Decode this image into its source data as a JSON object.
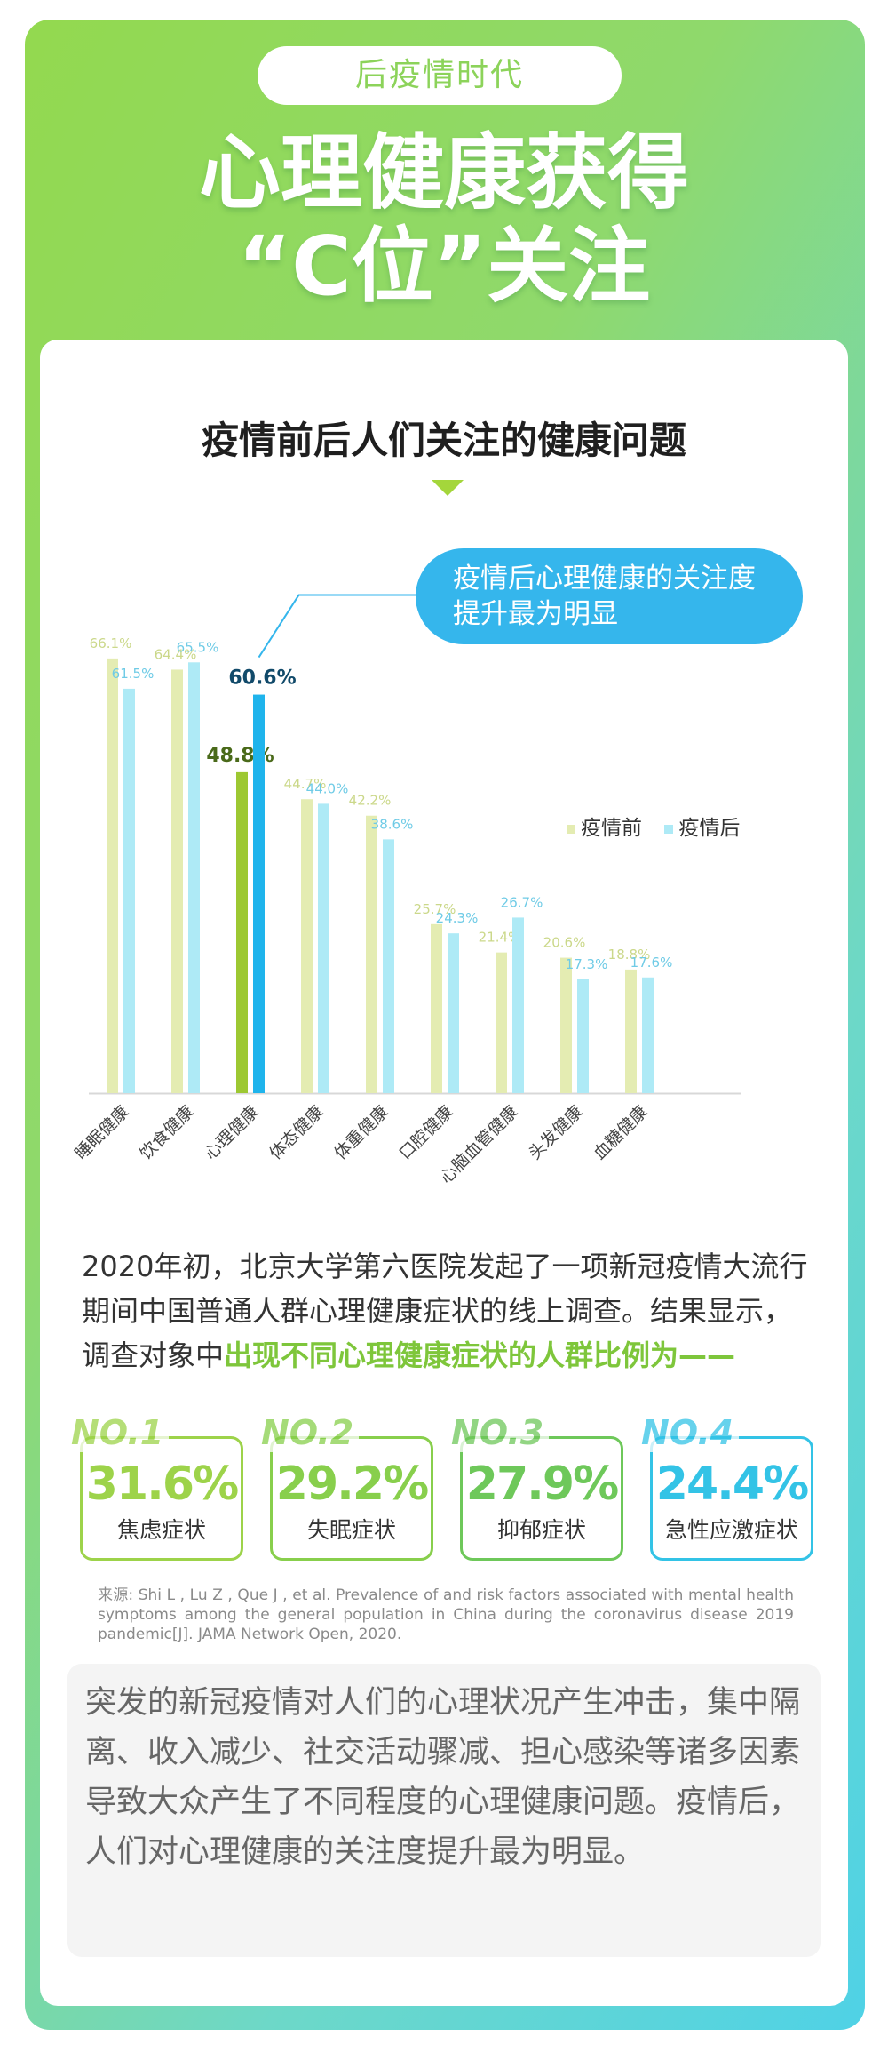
{
  "header": {
    "pill": "后疫情时代",
    "headline_line1": "心理健康获得",
    "headline_line2": "“C位”关注"
  },
  "chart_title": "疫情前后人们关注的健康问题",
  "callout": {
    "line1": "疫情后心理健康的关注度",
    "line2": "提升最为明显"
  },
  "chart_data": {
    "type": "bar",
    "categories": [
      "睡眠健康",
      "饮食健康",
      "心理健康",
      "体态健康",
      "体重健康",
      "口腔健康",
      "心脑血管健康",
      "头发健康",
      "血糖健康"
    ],
    "series": [
      {
        "name": "疫情前",
        "values": [
          66.1,
          64.4,
          48.8,
          44.7,
          42.2,
          25.7,
          21.4,
          20.6,
          18.8
        ],
        "labels": [
          "66.1%",
          "64.4%",
          "48.8%",
          "44.7%",
          "42.2%",
          "25.7%",
          "21.4%",
          "20.6%",
          "18.8%"
        ]
      },
      {
        "name": "疫情后",
        "values": [
          61.5,
          65.5,
          60.6,
          44.0,
          38.6,
          24.3,
          26.7,
          17.3,
          17.6
        ],
        "labels": [
          "61.5%",
          "65.5%",
          "60.6%",
          "44.0%",
          "38.6%",
          "24.3%",
          "26.7%",
          "17.3%",
          "17.6%"
        ]
      }
    ],
    "highlight_category": "心理健康",
    "ylim": [
      0,
      75
    ],
    "legend": [
      "疫情前",
      "疫情后"
    ]
  },
  "colors": {
    "before": "#e4ecb2",
    "after": "#aeeaf6",
    "before_highlight": "#9dc832",
    "after_highlight": "#1fb4ec",
    "before_label": "#cbd88a",
    "after_label": "#6fcbe6"
  },
  "paragraph1": {
    "text": "2020年初，北京大学第六医院发起了一项新冠疫情大流行期间中国普通人群心理健康症状的线上调查。结果显示，调查对象中",
    "highlight": "出现不同心理健康症状的人群比例为——"
  },
  "stats": [
    {
      "no": "NO.1",
      "percent": "31.6%",
      "label": "焦虑症状",
      "color": "#9dd34a"
    },
    {
      "no": "NO.2",
      "percent": "29.2%",
      "label": "失眠症状",
      "color": "#88cf4c"
    },
    {
      "no": "NO.3",
      "percent": "27.9%",
      "label": "抑郁症状",
      "color": "#6ec85a"
    },
    {
      "no": "NO.4",
      "percent": "24.4%",
      "label": "急性应激症状",
      "color": "#33c3e6"
    }
  ],
  "source": "来源: Shi L , Lu Z , Que J , et al. Prevalence of and risk factors associated with mental health symptoms among the general population in China during the coronavirus disease 2019 pandemic[J]. JAMA Network Open, 2020.",
  "paragraph2": "突发的新冠疫情对人们的心理状况产生冲击，集中隔离、收入减少、社交活动骤减、担心感染等诸多因素导致大众产生了不同程度的心理健康问题。疫情后，人们对心理健康的关注度提升最为明显。"
}
